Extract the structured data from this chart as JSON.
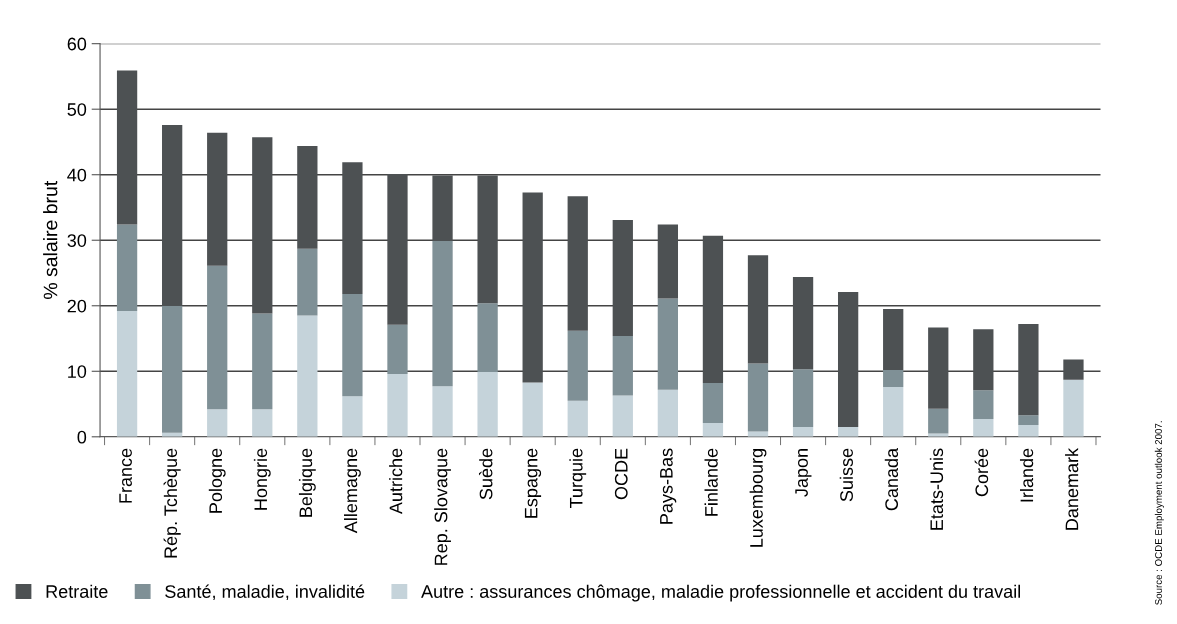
{
  "chart_data": {
    "type": "bar",
    "stacked": true,
    "ylabel": "% salaire brut",
    "categories": [
      "France",
      "Rép. Tchèque",
      "Pologne",
      "Hongrie",
      "Belgique",
      "Allemagne",
      "Autriche",
      "Rep. Slovaque",
      "Suède",
      "Espagne",
      "Turquie",
      "OCDE",
      "Pays-Bas",
      "Finlande",
      "Luxembourg",
      "Japon",
      "Suisse",
      "Canada",
      "Etats-Unis",
      "Corée",
      "Irlande",
      "Danemark"
    ],
    "series": [
      {
        "name": "Autre : assurances chômage, maladie professionnelle et accident du travail",
        "color": "#c5d3da",
        "values": [
          19.2,
          0.6,
          4.2,
          4.2,
          18.5,
          6.2,
          9.6,
          7.7,
          9.9,
          8.3,
          5.5,
          6.3,
          7.2,
          2.1,
          0.8,
          1.5,
          1.5,
          7.6,
          0.5,
          2.7,
          1.8,
          8.7
        ]
      },
      {
        "name": "Santé, maladie, invalidité",
        "color": "#7f9096",
        "values": [
          13.2,
          19.4,
          21.9,
          14.6,
          10.2,
          15.6,
          7.5,
          22.2,
          10.5,
          0,
          10.7,
          9.1,
          13.9,
          6.1,
          10.4,
          8.8,
          0,
          2.6,
          3.8,
          4.4,
          1.5,
          0
        ]
      },
      {
        "name": "Retraite",
        "color": "#4d5153",
        "values": [
          23.5,
          27.6,
          20.3,
          26.9,
          15.7,
          20.1,
          23.0,
          10.0,
          19.5,
          29.0,
          20.5,
          17.7,
          11.3,
          22.5,
          16.5,
          14.1,
          20.6,
          9.3,
          12.4,
          9.3,
          13.9,
          3.1
        ]
      }
    ],
    "ylim": [
      0,
      60
    ],
    "yticks": [
      0,
      10,
      20,
      30,
      40,
      50,
      60
    ],
    "grid": "y",
    "legend": "bottom left",
    "annotations": [
      "Source : OCDE Employment outlook 2007."
    ]
  }
}
